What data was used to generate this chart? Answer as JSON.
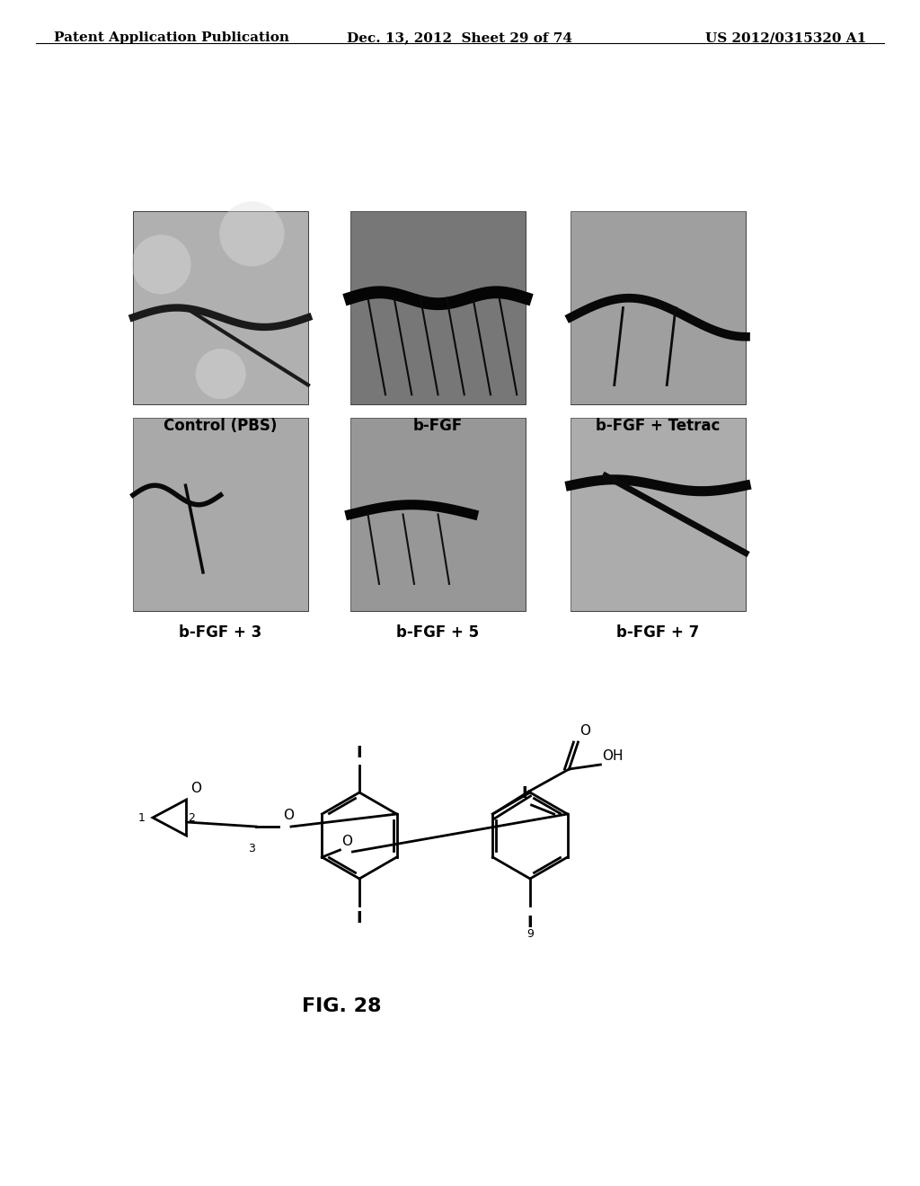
{
  "header_left": "Patent Application Publication",
  "header_mid": "Dec. 13, 2012  Sheet 29 of 74",
  "header_right": "US 2012/0315320 A1",
  "image_labels": [
    "Control (PBS)",
    "b-FGF",
    "b-FGF + Tetrac",
    "b-FGF + 3",
    "b-FGF + 5",
    "b-FGF + 7"
  ],
  "fig_label": "FIG. 28",
  "bg_color": "#ffffff",
  "text_color": "#000000",
  "header_fontsize": 11,
  "label_fontsize": 12
}
